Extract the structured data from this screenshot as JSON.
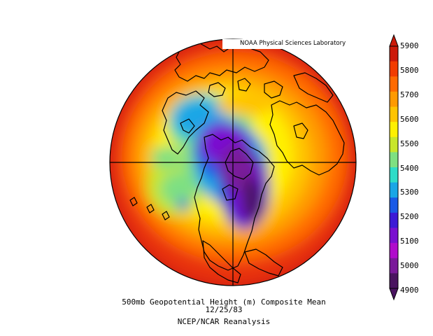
{
  "lab_label": "NOAA Physical Sciences Laboratory",
  "caption": {
    "title": "500mb Geopotential Height (m) Composite Mean",
    "date": "12/25/83",
    "source": "NCEP/NCAR Reanalysis"
  },
  "colorbar": {
    "ticks": [
      "5900",
      "5800",
      "5700",
      "5600",
      "5500",
      "5400",
      "5300",
      "5200",
      "5100",
      "5000",
      "4900"
    ],
    "colors": [
      "#cc1a0a",
      "#f23c00",
      "#ff6a00",
      "#ff9a00",
      "#ffc400",
      "#fff000",
      "#c8e62a",
      "#7ee082",
      "#2edcc8",
      "#1aa6e6",
      "#1a5ae6",
      "#3c1ad6",
      "#7a10d0",
      "#b00ccc",
      "#7a1a9a",
      "#4a1460"
    ]
  }
}
